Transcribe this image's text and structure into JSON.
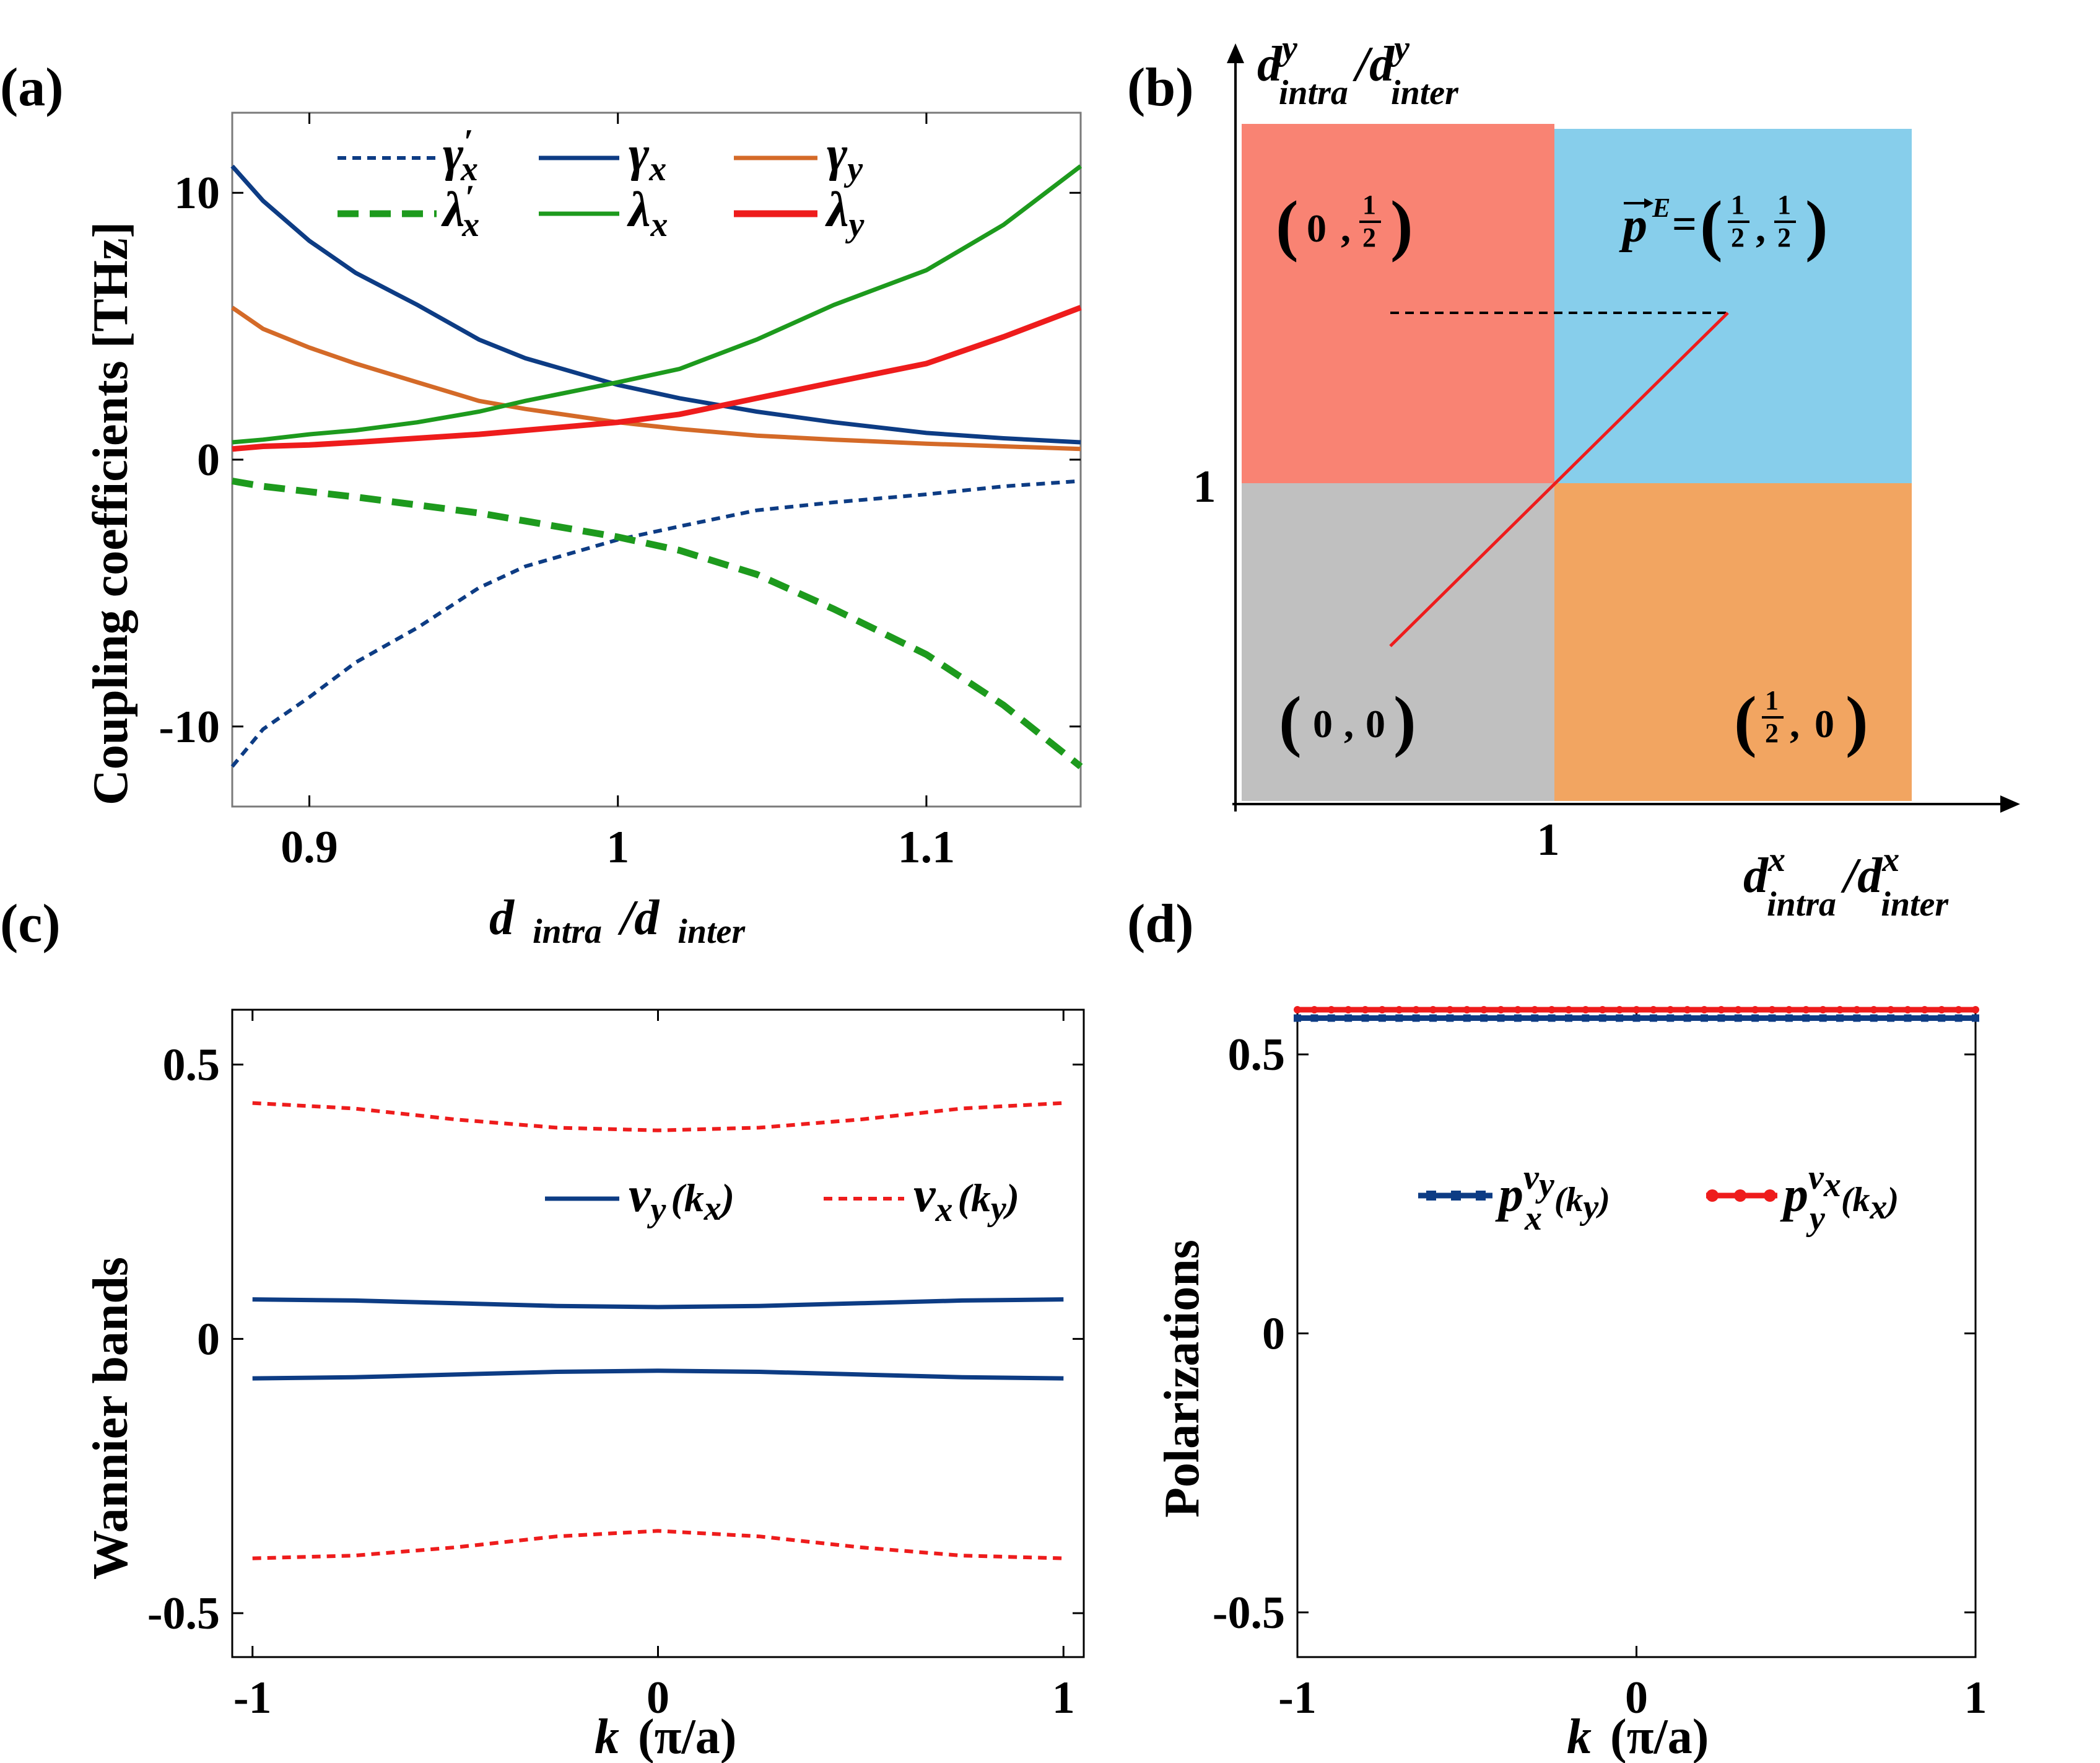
{
  "chart_data": [
    {
      "id": "a",
      "type": "line",
      "panel_label": "(a)",
      "xlabel_main": "d",
      "xlabel_sub1": "intra",
      "xlabel_sep": "/d",
      "xlabel_sub2": "inter",
      "ylabel": "Coupling coefficients [THz]",
      "xlim": [
        0.875,
        1.15
      ],
      "ylim": [
        -13,
        13
      ],
      "xticks": [
        0.9,
        1,
        1.1
      ],
      "xtick_labels": [
        "0.9",
        "1",
        "1.1"
      ],
      "yticks": [
        10,
        0,
        -10
      ],
      "ytick_labels": [
        "10",
        "0",
        "-10"
      ],
      "x": [
        0.875,
        0.885,
        0.9,
        0.915,
        0.935,
        0.955,
        0.97,
        1.0,
        1.02,
        1.045,
        1.07,
        1.1,
        1.125,
        1.15
      ],
      "series": [
        {
          "name": "γ′x",
          "legend_main": "γ",
          "legend_sub": "x",
          "legend_prime": "′",
          "color": "#0d3c84",
          "dash": "14,10",
          "width": 6,
          "values": [
            -11.5,
            -10.1,
            -8.9,
            -7.6,
            -6.3,
            -4.8,
            -4.0,
            -3.0,
            -2.5,
            -1.9,
            -1.6,
            -1.3,
            -1.0,
            -0.8
          ]
        },
        {
          "name": "γx",
          "legend_main": "γ",
          "legend_sub": "x",
          "legend_prime": "",
          "color": "#0d3c84",
          "dash": "",
          "width": 7,
          "values": [
            11.0,
            9.7,
            8.2,
            7.0,
            5.8,
            4.5,
            3.8,
            2.8,
            2.3,
            1.8,
            1.4,
            1.0,
            0.8,
            0.65
          ]
        },
        {
          "name": "γy",
          "legend_main": "γ",
          "legend_sub": "y",
          "legend_prime": "",
          "color": "#d46a28",
          "dash": "",
          "width": 7,
          "values": [
            5.7,
            4.9,
            4.2,
            3.6,
            2.9,
            2.2,
            1.9,
            1.4,
            1.15,
            0.9,
            0.75,
            0.6,
            0.5,
            0.4
          ]
        },
        {
          "name": "λ′x",
          "legend_main": "λ",
          "legend_sub": "x",
          "legend_prime": "′",
          "color": "#1d9a1d",
          "dash": "34,18",
          "width": 11,
          "values": [
            -0.8,
            -1.0,
            -1.2,
            -1.4,
            -1.7,
            -2.0,
            -2.3,
            -2.9,
            -3.4,
            -4.3,
            -5.6,
            -7.3,
            -9.2,
            -11.5
          ]
        },
        {
          "name": "λx",
          "legend_main": "λ",
          "legend_sub": "x",
          "legend_prime": "",
          "color": "#1d9a1d",
          "dash": "",
          "width": 7,
          "values": [
            0.65,
            0.75,
            0.95,
            1.1,
            1.4,
            1.8,
            2.2,
            2.9,
            3.4,
            4.5,
            5.8,
            7.1,
            8.8,
            11.0
          ]
        },
        {
          "name": "λy",
          "legend_main": "λ",
          "legend_sub": "y",
          "legend_prime": "",
          "color": "#ee1c1c",
          "dash": "",
          "width": 9,
          "values": [
            0.4,
            0.5,
            0.55,
            0.65,
            0.8,
            0.95,
            1.1,
            1.4,
            1.7,
            2.3,
            2.9,
            3.6,
            4.6,
            5.7
          ]
        }
      ]
    },
    {
      "id": "b",
      "type": "heatmap",
      "panel_label": "(b)",
      "xlabel_main": "d",
      "xlabel_sup": "x",
      "xlabel_sub1": "intra",
      "xlabel_sep": "/d",
      "xlabel_sub2": "inter",
      "ylabel_main": "d",
      "ylabel_sup": "y",
      "ylabel_sub1": "intra",
      "ylabel_sep": "/d",
      "ylabel_sub2": "inter",
      "xtick_label": "1",
      "ytick_label": "1",
      "regions": [
        {
          "name": "bottom-left",
          "color": "#c0c0c0",
          "label": "(0 , 0)"
        },
        {
          "name": "top-left",
          "color": "#f98373",
          "label": "(0 , 1/2)"
        },
        {
          "name": "top-right",
          "color": "#87ceeb",
          "label": "p^E = (1/2, 1/2)",
          "vector_symbol": "p",
          "vector_sup": "E"
        },
        {
          "name": "bottom-right",
          "color": "#f2a561",
          "label": "(1/2, 0)"
        }
      ],
      "half": "1",
      "half_den": "2",
      "zero": "0",
      "comma": ",",
      "red_line_color": "#ee1c1c",
      "dashed_line_color": "#000000"
    },
    {
      "id": "c",
      "type": "line",
      "panel_label": "(c)",
      "xlabel_main": "k",
      "xlabel_unit": "(π/a)",
      "ylabel": "Wannier bands",
      "xlim": [
        -1.05,
        1.05
      ],
      "ylim": [
        -0.58,
        0.6
      ],
      "xticks": [
        -1,
        0,
        1
      ],
      "xtick_labels": [
        "-1",
        "0",
        "1"
      ],
      "yticks": [
        0.5,
        0,
        -0.5
      ],
      "ytick_labels": [
        "0.5",
        "0",
        "-0.5"
      ],
      "x": [
        -1.0,
        -0.75,
        -0.5,
        -0.25,
        0.0,
        0.25,
        0.5,
        0.75,
        1.0
      ],
      "series": [
        {
          "name": "νy(kx)",
          "legend_main": "ν",
          "legend_sub": "y",
          "legend_arg": "(k",
          "legend_arg_sub": "x",
          "legend_close": ")",
          "color": "#0d3c84",
          "dash": "",
          "width": 7,
          "values_upper": [
            0.072,
            0.07,
            0.065,
            0.06,
            0.058,
            0.06,
            0.065,
            0.07,
            0.072
          ],
          "values_lower": [
            -0.072,
            -0.07,
            -0.065,
            -0.06,
            -0.058,
            -0.06,
            -0.065,
            -0.07,
            -0.072
          ]
        },
        {
          "name": "νx(ky)",
          "legend_main": "ν",
          "legend_sub": "x",
          "legend_arg": "(k",
          "legend_arg_sub": "y",
          "legend_close": ")",
          "color": "#ee1c1c",
          "dash": "14,10",
          "width": 6,
          "values_upper": [
            0.43,
            0.42,
            0.4,
            0.385,
            0.38,
            0.385,
            0.4,
            0.42,
            0.43
          ],
          "values_lower": [
            -0.4,
            -0.395,
            -0.38,
            -0.36,
            -0.35,
            -0.36,
            -0.38,
            -0.395,
            -0.4
          ]
        }
      ]
    },
    {
      "id": "d",
      "type": "line",
      "panel_label": "(d)",
      "xlabel_main": "k",
      "xlabel_unit": "(π/a)",
      "ylabel": "Polarizations",
      "xlim": [
        -1,
        1
      ],
      "ylim": [
        -0.58,
        0.58
      ],
      "xticks": [
        -1,
        0,
        1
      ],
      "xtick_labels": [
        "-1",
        "0",
        "1"
      ],
      "yticks": [
        0.5,
        0,
        -0.5
      ],
      "ytick_labels": [
        "0.5",
        "0",
        "-0.5"
      ],
      "series": [
        {
          "name": "px^νy(ky)",
          "legend_main": "p",
          "legend_sub": "x",
          "legend_sup": "ν",
          "legend_sup_sub": "y",
          "legend_arg": "(k",
          "legend_arg_sub": "y",
          "legend_close": ")",
          "color": "#0d3c84",
          "marker": "square",
          "value": 0.565
        },
        {
          "name": "py^νx(kx)",
          "legend_main": "p",
          "legend_sub": "y",
          "legend_sup": "ν",
          "legend_sup_sub": "x",
          "legend_arg": "(k",
          "legend_arg_sub": "x",
          "legend_close": ")",
          "color": "#ee1c1c",
          "marker": "circle",
          "value": 0.58
        }
      ]
    }
  ]
}
